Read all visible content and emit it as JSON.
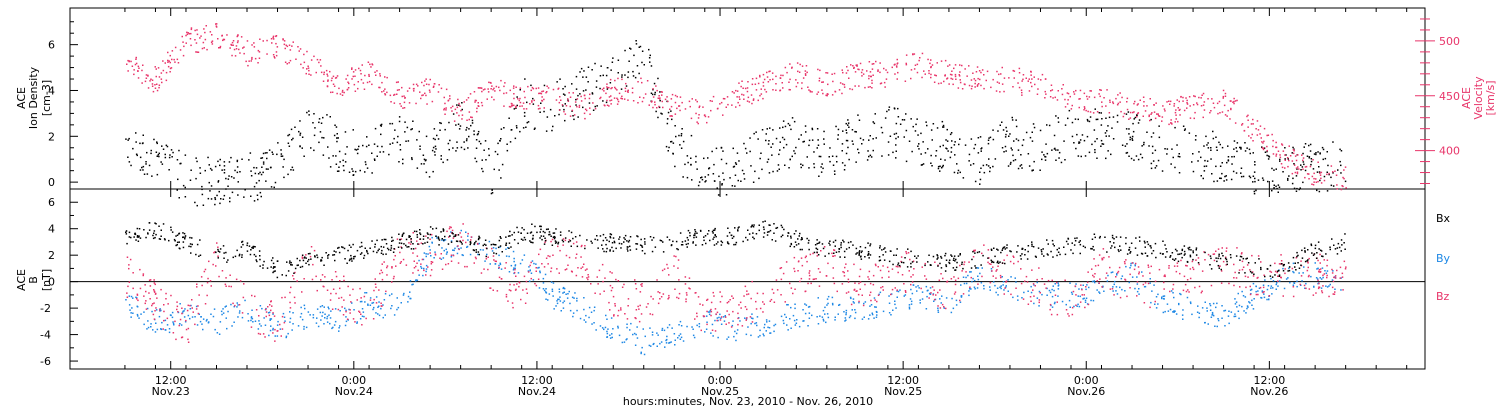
{
  "colors": {
    "black": "#000000",
    "pink": "#e8356a",
    "blue": "#1e88e5"
  },
  "chart_data": [
    {
      "type": "scatter",
      "panel": "top",
      "ylabel_left": [
        "ACE",
        "Ion Density",
        "[cm-3]"
      ],
      "ylabel_right": [
        "ACE",
        "Velocity",
        "[km/s]"
      ],
      "ylim_left": [
        -0.3,
        7.6
      ],
      "ylim_right": [
        365,
        530
      ],
      "yticks_left": [
        0,
        2,
        4,
        6
      ],
      "yticks_right": [
        400,
        450,
        500
      ],
      "grid": false,
      "series": [
        {
          "color": "#000000",
          "axis": "left",
          "x": [
            0,
            2,
            4,
            6,
            8,
            10,
            12,
            14,
            16,
            18,
            20,
            22,
            24,
            26,
            28,
            30,
            32,
            34,
            36,
            38,
            40,
            42,
            44,
            46,
            48,
            50,
            52,
            54,
            56,
            58,
            60,
            62,
            64,
            66,
            68,
            70,
            72,
            74,
            76,
            78,
            80
          ],
          "y": [
            2.0,
            1.0,
            0.1,
            0.1,
            0.2,
            0.7,
            2.5,
            1.5,
            1.2,
            2.0,
            1.2,
            2.5,
            0.4,
            3.5,
            3.3,
            4.0,
            4.5,
            5.5,
            1.5,
            0.7,
            0.4,
            1.5,
            1.8,
            1.2,
            2.0,
            2.3,
            1.8,
            1.5,
            1.0,
            1.8,
            1.5,
            2.2,
            2.1,
            2.0,
            1.5,
            1.4,
            1.0,
            0.6,
            0.5,
            0.7,
            0.8
          ]
        },
        {
          "color": "#e8356a",
          "axis": "right",
          "x": [
            0,
            2,
            4,
            6,
            8,
            10,
            12,
            14,
            16,
            18,
            20,
            22,
            24,
            26,
            28,
            30,
            32,
            34,
            36,
            38,
            40,
            42,
            44,
            46,
            48,
            50,
            52,
            54,
            56,
            58,
            60,
            62,
            64,
            66,
            68,
            70,
            72,
            74,
            76,
            78,
            80
          ],
          "y": [
            480,
            465,
            500,
            505,
            490,
            495,
            480,
            460,
            470,
            450,
            455,
            435,
            455,
            450,
            448,
            440,
            455,
            455,
            440,
            435,
            450,
            460,
            470,
            460,
            470,
            470,
            480,
            470,
            465,
            465,
            460,
            450,
            445,
            440,
            435,
            440,
            445,
            420,
            395,
            380,
            375
          ]
        }
      ]
    },
    {
      "type": "scatter",
      "panel": "bottom",
      "ylabel_left": [
        "ACE",
        "B",
        "[nT]"
      ],
      "ylim": [
        -6.6,
        7.0
      ],
      "yticks": [
        -6,
        -4,
        -2,
        0,
        2,
        4,
        6
      ],
      "grid": false,
      "zero_line": true,
      "legend": [
        "Bx",
        "By",
        "Bz"
      ],
      "series": [
        {
          "name": "Bx",
          "color": "#000000",
          "x": [
            0,
            2,
            4,
            6,
            8,
            10,
            12,
            14,
            16,
            18,
            20,
            22,
            24,
            26,
            28,
            30,
            32,
            34,
            36,
            38,
            40,
            42,
            44,
            46,
            48,
            50,
            52,
            54,
            56,
            58,
            60,
            62,
            64,
            66,
            68,
            70,
            72,
            74,
            76,
            78,
            80
          ],
          "y": [
            3.5,
            4.0,
            3.0,
            2.0,
            2.5,
            1.0,
            1.5,
            2.0,
            2.5,
            3.0,
            3.5,
            3.2,
            2.5,
            3.8,
            3.5,
            3.0,
            3.0,
            2.8,
            3.0,
            3.5,
            3.5,
            4.0,
            3.2,
            2.5,
            2.5,
            2.0,
            1.8,
            1.5,
            1.8,
            2.2,
            2.5,
            2.8,
            3.0,
            2.8,
            2.5,
            2.0,
            1.5,
            1.2,
            1.0,
            2.5,
            3.0
          ]
        },
        {
          "name": "By",
          "color": "#1e88e5",
          "x": [
            0,
            2,
            4,
            6,
            8,
            10,
            12,
            14,
            16,
            18,
            20,
            22,
            24,
            26,
            28,
            30,
            32,
            34,
            36,
            38,
            40,
            42,
            44,
            46,
            48,
            50,
            52,
            54,
            56,
            58,
            60,
            62,
            64,
            66,
            68,
            70,
            72,
            74,
            76,
            78,
            80
          ],
          "y": [
            -1.5,
            -3.0,
            -2.5,
            -3.0,
            -2.0,
            -3.5,
            -2.5,
            -3.0,
            -1.5,
            -2.0,
            2.5,
            3.0,
            2.0,
            1.5,
            -1.0,
            -2.0,
            -3.5,
            -4.5,
            -4.0,
            -3.0,
            -3.5,
            -3.0,
            -2.5,
            -2.0,
            -2.0,
            -1.5,
            -1.0,
            -1.5,
            0.5,
            -0.5,
            -1.0,
            -1.0,
            -0.5,
            0.5,
            -1.5,
            -2.0,
            -2.5,
            -1.0,
            0.5,
            0.5,
            0.3
          ]
        },
        {
          "name": "Bz",
          "color": "#e8356a",
          "x": [
            0,
            2,
            4,
            6,
            8,
            10,
            12,
            14,
            16,
            18,
            20,
            22,
            24,
            26,
            28,
            30,
            32,
            34,
            36,
            38,
            40,
            42,
            44,
            46,
            48,
            50,
            52,
            54,
            56,
            58,
            60,
            62,
            64,
            66,
            68,
            70,
            72,
            74,
            76,
            78,
            80
          ],
          "y": [
            0.5,
            -1.5,
            -3.5,
            2.0,
            -2.0,
            -3.0,
            1.5,
            -1.0,
            -2.0,
            2.5,
            2.0,
            3.0,
            1.0,
            -1.0,
            2.5,
            1.5,
            -1.0,
            -1.5,
            0.5,
            -2.5,
            -2.0,
            -1.0,
            0.5,
            1.5,
            -0.5,
            0.5,
            1.0,
            -1.0,
            1.5,
            0.5,
            -0.5,
            -1.5,
            1.0,
            0.0,
            -0.5,
            0.5,
            1.5,
            0.5,
            0.5,
            0.6,
            0.0
          ]
        }
      ]
    }
  ],
  "xaxis": {
    "ticks": [
      {
        "h": 3,
        "time": "12:00",
        "date": "Nov.23"
      },
      {
        "h": 15,
        "time": "0:00",
        "date": "Nov.24"
      },
      {
        "h": 27,
        "time": "12:00",
        "date": "Nov.24"
      },
      {
        "h": 39,
        "time": "0:00",
        "date": "Nov.25"
      },
      {
        "h": 51,
        "time": "12:00",
        "date": "Nov.25"
      },
      {
        "h": 63,
        "time": "0:00",
        "date": "Nov.26"
      },
      {
        "h": 75,
        "time": "12:00",
        "date": "Nov.26"
      }
    ],
    "xlabel": "hours:minutes, Nov. 23, 2010 - Nov. 26, 2010"
  }
}
